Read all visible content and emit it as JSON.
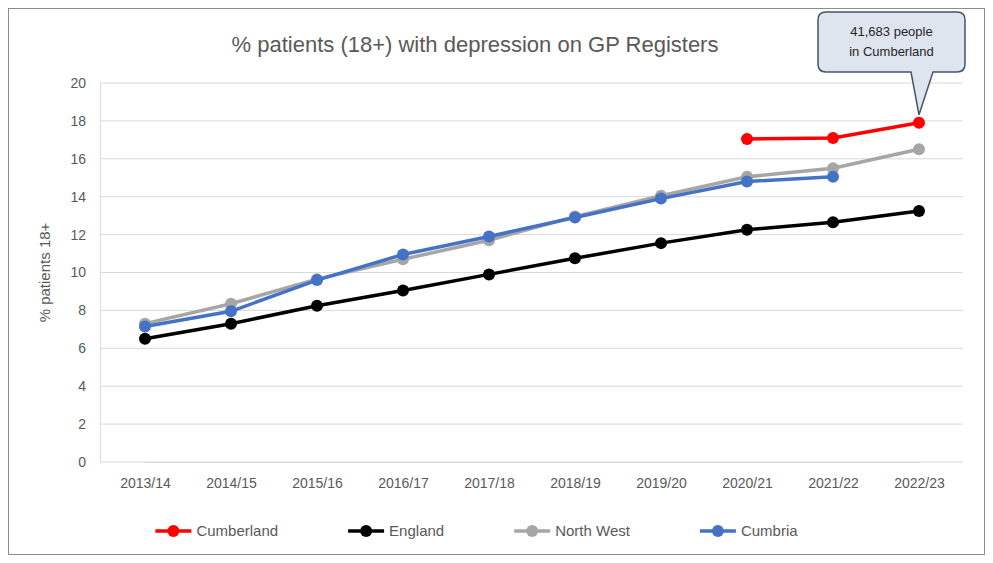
{
  "chart_data": {
    "type": "line",
    "title": "% patients (18+) with depression on GP Registers",
    "y_label": "% patients 18+",
    "annotation": [
      "41,683 people",
      "in Cumberland"
    ],
    "categories": [
      "2013/14",
      "2014/15",
      "2015/16",
      "2016/17",
      "2017/18",
      "2018/19",
      "2019/20",
      "2020/21",
      "2021/22",
      "2022/23"
    ],
    "series": [
      {
        "name": "Cumberland",
        "color": "#ff0000",
        "values": [
          null,
          null,
          null,
          null,
          null,
          null,
          null,
          17.05,
          17.1,
          17.9
        ]
      },
      {
        "name": "England",
        "color": "#000000",
        "values": [
          6.5,
          7.3,
          8.25,
          9.05,
          9.9,
          10.75,
          11.55,
          12.25,
          12.65,
          13.25
        ]
      },
      {
        "name": "North West",
        "color": "#a6a6a6",
        "values": [
          7.3,
          8.35,
          9.65,
          10.7,
          11.7,
          12.95,
          14.05,
          15.05,
          15.5,
          16.5
        ]
      },
      {
        "name": "Cumbria",
        "color": "#4472c4",
        "values": [
          7.15,
          7.95,
          9.6,
          10.95,
          11.9,
          12.9,
          13.9,
          14.8,
          15.05,
          null
        ]
      }
    ],
    "ylim": [
      0,
      20
    ],
    "yticks": [
      0,
      2,
      4,
      6,
      8,
      10,
      12,
      14,
      16,
      18,
      20
    ],
    "grid": true,
    "legend": "bottom",
    "marker": "circle"
  }
}
